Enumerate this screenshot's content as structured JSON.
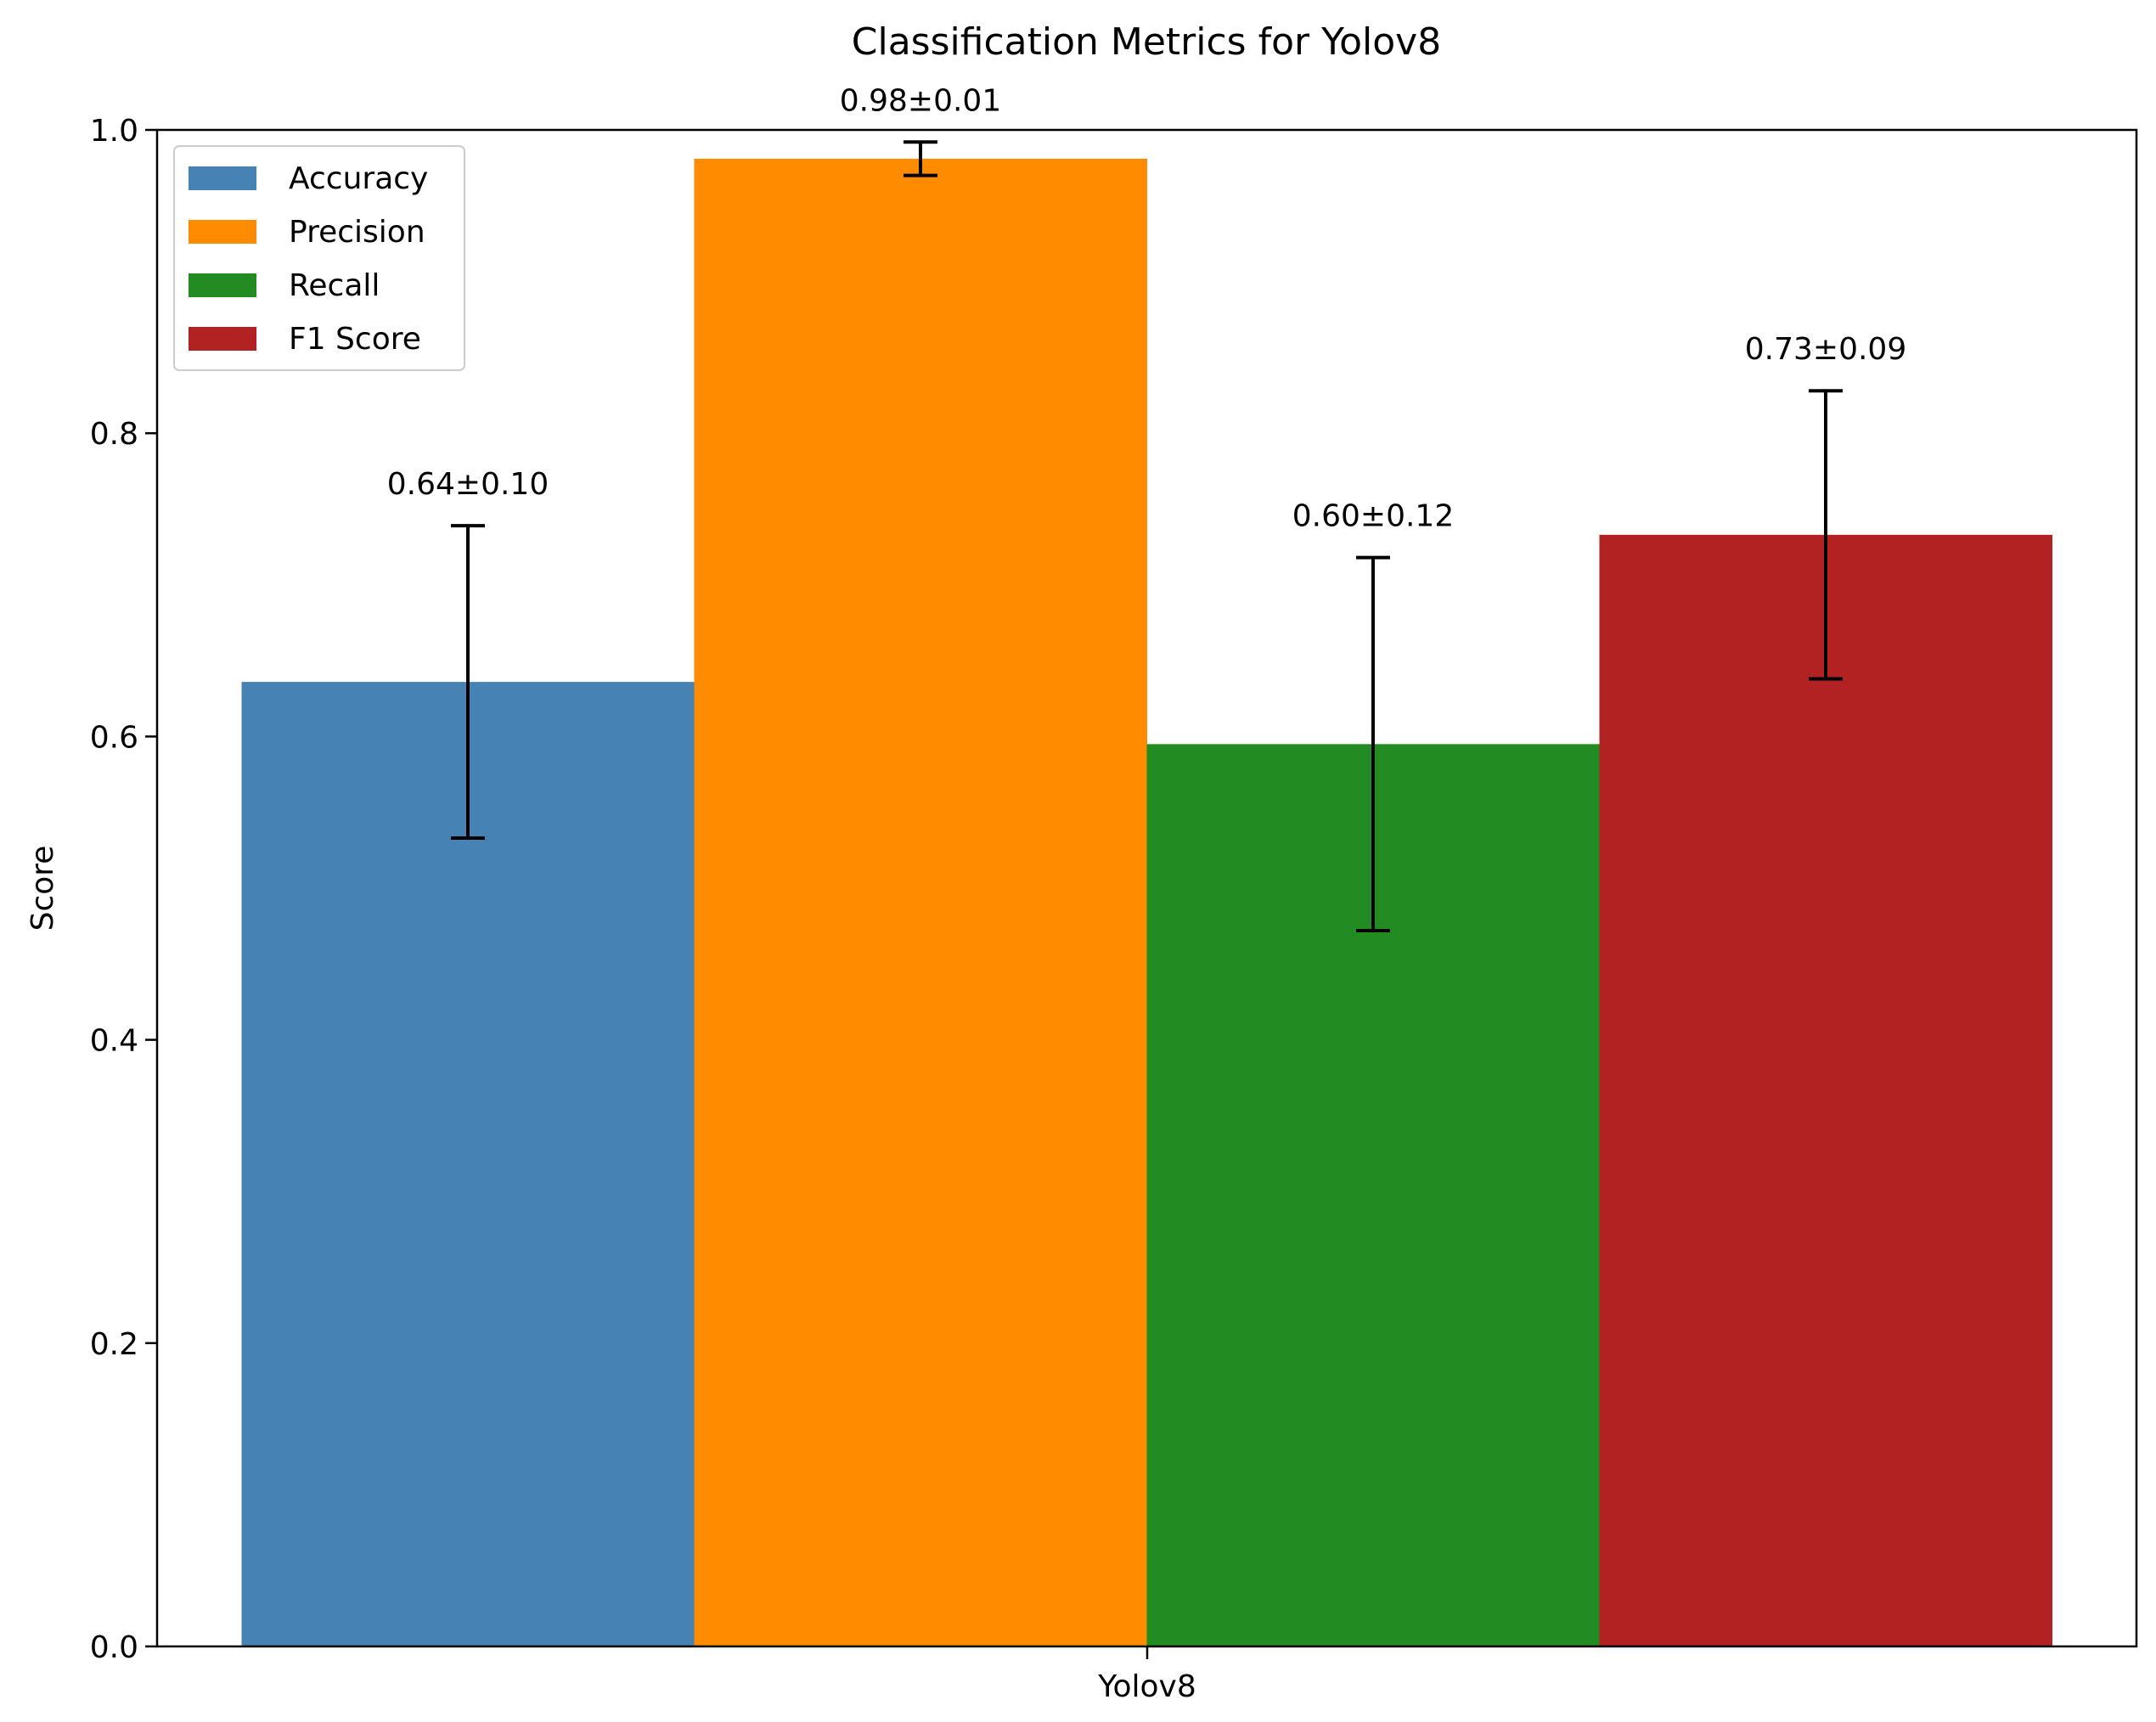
{
  "chart_data": {
    "type": "bar",
    "title": "Classification Metrics for Yolov8",
    "xlabel": "",
    "ylabel": "Score",
    "categories": [
      "Yolov8"
    ],
    "series": [
      {
        "name": "Accuracy",
        "values": [
          0.636
        ],
        "error": [
          0.103
        ],
        "color": "#4682B4",
        "label": "0.64±0.10"
      },
      {
        "name": "Precision",
        "values": [
          0.981
        ],
        "error": [
          0.011
        ],
        "color": "#FF8C00",
        "label": "0.98±0.01"
      },
      {
        "name": "Recall",
        "values": [
          0.595
        ],
        "error": [
          0.123
        ],
        "color": "#228B22",
        "label": "0.60±0.12"
      },
      {
        "name": "F1 Score",
        "values": [
          0.733
        ],
        "error": [
          0.095
        ],
        "color": "#B22222",
        "label": "0.73±0.09"
      }
    ],
    "ylim": [
      0,
      1.0
    ],
    "yticks": [
      "0.0",
      "0.2",
      "0.4",
      "0.6",
      "0.8",
      "1.0"
    ],
    "legend": "top-left",
    "grid": false
  }
}
